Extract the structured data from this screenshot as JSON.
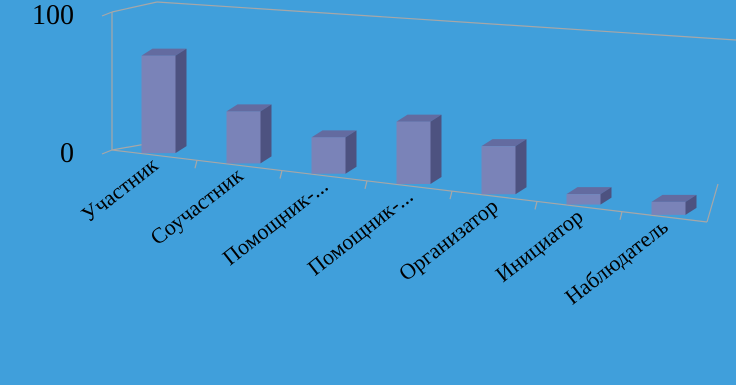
{
  "chart_data": {
    "type": "bar",
    "categories": [
      "Участник",
      "Соучастник",
      "Помощник-...",
      "Помощник-...",
      "Организатор",
      "Инициатор",
      "Наблюдатель"
    ],
    "values": [
      75,
      40,
      28,
      48,
      37,
      8,
      10
    ],
    "y_ticks": [
      "0",
      "100"
    ],
    "ylim": [
      0,
      100
    ],
    "grid": false,
    "legend": "none",
    "colors": {
      "background": "#409fdb",
      "bar_front": "#7a83b8",
      "bar_side": "#4d5280",
      "bar_top": "#636ba0",
      "axis": "#a7a7a7"
    }
  }
}
